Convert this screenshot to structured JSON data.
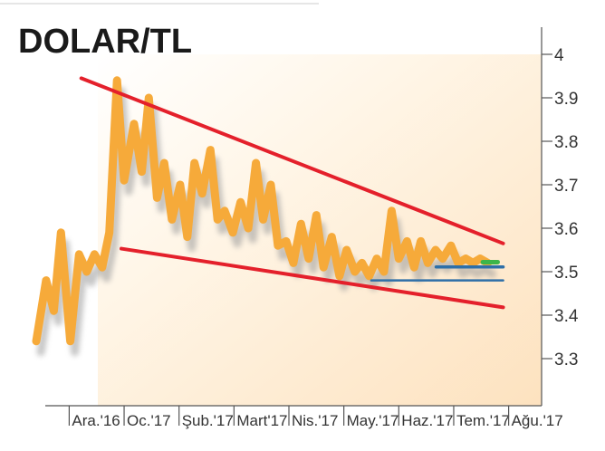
{
  "chart_data": {
    "type": "line",
    "title": "DOLAR/TL",
    "xlabel": "",
    "ylabel": "",
    "ylim": [
      3.2,
      4.05
    ],
    "yticks": [
      "4",
      "3.9",
      "3.8",
      "3.7",
      "3.6",
      "3.5",
      "3.4",
      "3.3"
    ],
    "ytick_values": [
      4.0,
      3.9,
      3.8,
      3.7,
      3.6,
      3.5,
      3.4,
      3.3
    ],
    "xticks": [
      "Ara.'16",
      "Oc.'17",
      "Şub.'17",
      "Mart'17",
      "Nis.'17",
      "May.'17",
      "Haz.'17",
      "Tem.'17",
      "Ağu.'17"
    ],
    "x_range": [
      0,
      9.2
    ],
    "series": [
      {
        "x": [
          0.0,
          0.18,
          0.32,
          0.45,
          0.62,
          0.78,
          0.92,
          1.06,
          1.2,
          1.33,
          1.47,
          1.6,
          1.78,
          1.92,
          2.05,
          2.2,
          2.33,
          2.47,
          2.62,
          2.75,
          2.88,
          3.02,
          3.17,
          3.3,
          3.43,
          3.58,
          3.72,
          3.86,
          4.0,
          4.13,
          4.27,
          4.4,
          4.55,
          4.68,
          4.82,
          4.96,
          5.1,
          5.23,
          5.38,
          5.52,
          5.65,
          5.8,
          5.93,
          6.06,
          6.2,
          6.33,
          6.47,
          6.6,
          6.75,
          6.88,
          7.0,
          7.13,
          7.27,
          7.4,
          7.55,
          7.68,
          7.82,
          7.95,
          8.08,
          8.22
        ],
        "values": [
          3.34,
          3.48,
          3.41,
          3.59,
          3.34,
          3.54,
          3.5,
          3.54,
          3.51,
          3.59,
          3.94,
          3.71,
          3.84,
          3.73,
          3.9,
          3.67,
          3.75,
          3.62,
          3.7,
          3.58,
          3.75,
          3.68,
          3.78,
          3.62,
          3.64,
          3.59,
          3.66,
          3.6,
          3.75,
          3.62,
          3.7,
          3.56,
          3.57,
          3.52,
          3.61,
          3.53,
          3.63,
          3.51,
          3.58,
          3.49,
          3.55,
          3.5,
          3.52,
          3.49,
          3.53,
          3.5,
          3.64,
          3.53,
          3.57,
          3.51,
          3.57,
          3.52,
          3.55,
          3.53,
          3.56,
          3.52,
          3.53,
          3.52,
          3.53,
          3.52
        ]
      }
    ],
    "annotations": {
      "upper_trend": {
        "x": [
          0.82,
          8.5
        ],
        "y": [
          3.945,
          3.565
        ]
      },
      "lower_trend": {
        "x": [
          1.55,
          8.5
        ],
        "y": [
          3.553,
          3.418
        ]
      },
      "support_blue_1": {
        "x": [
          7.28,
          8.5
        ],
        "y": [
          3.511,
          3.511
        ]
      },
      "support_blue_2": {
        "x": [
          6.1,
          8.5
        ],
        "y": [
          3.48,
          3.48
        ]
      },
      "green_mark": {
        "x": [
          8.13,
          8.4
        ],
        "y": [
          3.522,
          3.522
        ]
      }
    },
    "colors": {
      "line": "#f6aa3a",
      "trend": "#e4202b",
      "support": "#2e6fa8",
      "green": "#3cb54a",
      "shadow": "#9a9a9a",
      "background_glow": "#fde9cc"
    },
    "grid": false,
    "legend": "none"
  }
}
